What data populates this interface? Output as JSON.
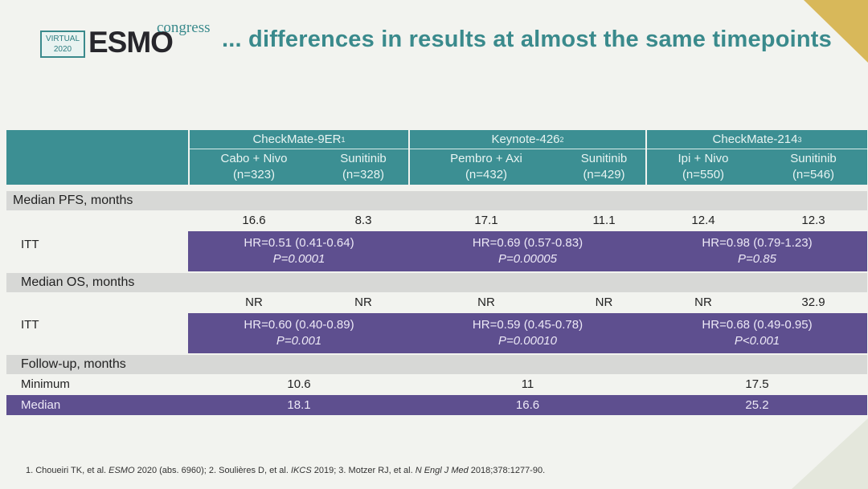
{
  "logo": {
    "line1": "VIRTUAL",
    "line2": "2020",
    "brand": "ESMO",
    "suffix": "congress"
  },
  "title": "... differences in results at almost the same timepoints",
  "trials": [
    {
      "name": "CheckMate-9ER",
      "ref": "1",
      "arms": [
        {
          "name": "Cabo + Nivo",
          "n": "(n=323)"
        },
        {
          "name": "Sunitinib",
          "n": "(n=328)"
        }
      ]
    },
    {
      "name": "Keynote-426",
      "ref": "2",
      "arms": [
        {
          "name": "Pembro + Axi",
          "n": "(n=432)"
        },
        {
          "name": "Sunitinib",
          "n": "(n=429)"
        }
      ]
    },
    {
      "name": "CheckMate-214",
      "ref": "3",
      "arms": [
        {
          "name": "Ipi + Nivo",
          "n": "(n=550)"
        },
        {
          "name": "Sunitinib",
          "n": "(n=546)"
        }
      ]
    }
  ],
  "pfs": {
    "section": "Median PFS, months",
    "row_label": "ITT",
    "values": [
      "16.6",
      "8.3",
      "17.1",
      "11.1",
      "12.4",
      "12.3"
    ],
    "hr": [
      "HR=0.51 (0.41-0.64)",
      "HR=0.69 (0.57-0.83)",
      "HR=0.98 (0.79-1.23)"
    ],
    "p": [
      "P=0.0001",
      "P=0.00005",
      "P=0.85"
    ]
  },
  "os": {
    "section": "Median OS, months",
    "row_label": "ITT",
    "values": [
      "NR",
      "NR",
      "NR",
      "NR",
      "NR",
      "32.9"
    ],
    "hr": [
      "HR=0.60 (0.40-0.89)",
      "HR=0.59 (0.45-0.78)",
      "HR=0.68 (0.49-0.95)"
    ],
    "p": [
      "P=0.001",
      "P=0.00010",
      "P<0.001"
    ]
  },
  "followup": {
    "section": "Follow-up, months",
    "rows": [
      {
        "label": "Minimum",
        "values": [
          "10.6",
          "11",
          "17.5"
        ]
      },
      {
        "label": "Median",
        "values": [
          "18.1",
          "16.6",
          "25.2"
        ]
      }
    ]
  },
  "footnote": {
    "a": "1. Choueiri TK, et al. ",
    "a_it": "ESMO",
    "b": " 2020 (abs. 6960); 2. Soulières D, et al. ",
    "b_it": "IKCS",
    "c": " 2019; 3. Motzer RJ, et al. ",
    "c_it": "N Engl J Med",
    "d": " 2018;378:1277-90."
  },
  "colors": {
    "teal": "#3c8f93",
    "purple": "#5e4f8f",
    "gold": "#d8b85a"
  }
}
